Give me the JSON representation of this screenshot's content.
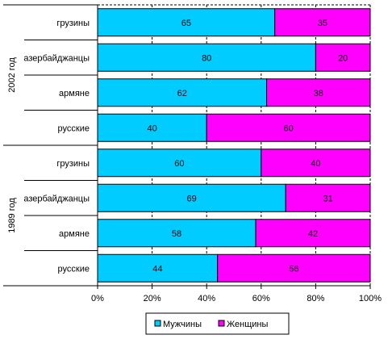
{
  "chart_data": {
    "type": "bar",
    "orientation": "horizontal",
    "stacked": "percent",
    "groups": [
      {
        "label": "2002 год",
        "categories": [
          "грузины",
          "азербайджанцы",
          "армяне",
          "русские"
        ],
        "series": [
          {
            "name": "Мужчины",
            "values": [
              65,
              80,
              62,
              40
            ]
          },
          {
            "name": "Женщины",
            "values": [
              35,
              20,
              38,
              60
            ]
          }
        ]
      },
      {
        "label": "1989 год",
        "categories": [
          "грузины",
          "азербайджанцы",
          "армяне",
          "русские"
        ],
        "series": [
          {
            "name": "Мужчины",
            "values": [
              60,
              69,
              58,
              44
            ]
          },
          {
            "name": "Женщины",
            "values": [
              40,
              31,
              42,
              56
            ]
          }
        ]
      }
    ],
    "x_ticks": [
      "0%",
      "20%",
      "40%",
      "60%",
      "80%",
      "100%"
    ],
    "xlim": [
      0,
      100
    ],
    "grid": "vertical dashed",
    "legend": {
      "position": "bottom",
      "entries": [
        "Мужчины",
        "Женщины"
      ]
    },
    "colors": {
      "Мужчины": "#00ccff",
      "Женщины": "#ff00ff"
    }
  }
}
